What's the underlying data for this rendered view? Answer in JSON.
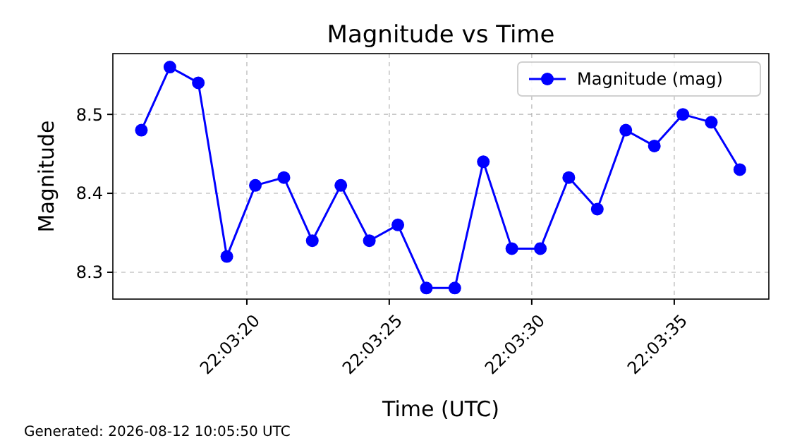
{
  "chart_data": {
    "type": "line",
    "title": "Magnitude vs Time",
    "xlabel": "Time (UTC)",
    "ylabel": "Magnitude",
    "x": [
      22.054528,
      22.054806,
      22.055083,
      22.055361,
      22.055639,
      22.055917,
      22.056194,
      22.056472,
      22.05675,
      22.057028,
      22.057306,
      22.057583,
      22.057861,
      22.058139,
      22.058417,
      22.058694,
      22.058972,
      22.05925,
      22.059528,
      22.059806,
      22.060083,
      22.060361
    ],
    "series": [
      {
        "name": "Magnitude (mag)",
        "color": "#0000ff",
        "values": [
          8.48,
          8.56,
          8.54,
          8.32,
          8.41,
          8.42,
          8.34,
          8.41,
          8.34,
          8.36,
          8.28,
          8.28,
          8.44,
          8.33,
          8.33,
          8.42,
          8.38,
          8.48,
          8.46,
          8.5,
          8.49,
          8.43
        ]
      }
    ],
    "xlim": [
      22.05425,
      22.060644
    ],
    "ylim": [
      8.266,
      8.577
    ],
    "xticks": [
      {
        "value": 22.055556,
        "label": "22:03:20"
      },
      {
        "value": 22.056944,
        "label": "22:03:25"
      },
      {
        "value": 22.058333,
        "label": "22:03:30"
      },
      {
        "value": 22.059722,
        "label": "22:03:35"
      }
    ],
    "yticks": [
      {
        "value": 8.3,
        "label": "8.3"
      },
      {
        "value": 8.4,
        "label": "8.4"
      },
      {
        "value": 8.5,
        "label": "8.5"
      }
    ],
    "grid": true,
    "legend": "top right",
    "marker": "circle",
    "line_style": "solid",
    "annotations": [
      "Generated: 2026-08-12 10:05:50 UTC"
    ]
  }
}
